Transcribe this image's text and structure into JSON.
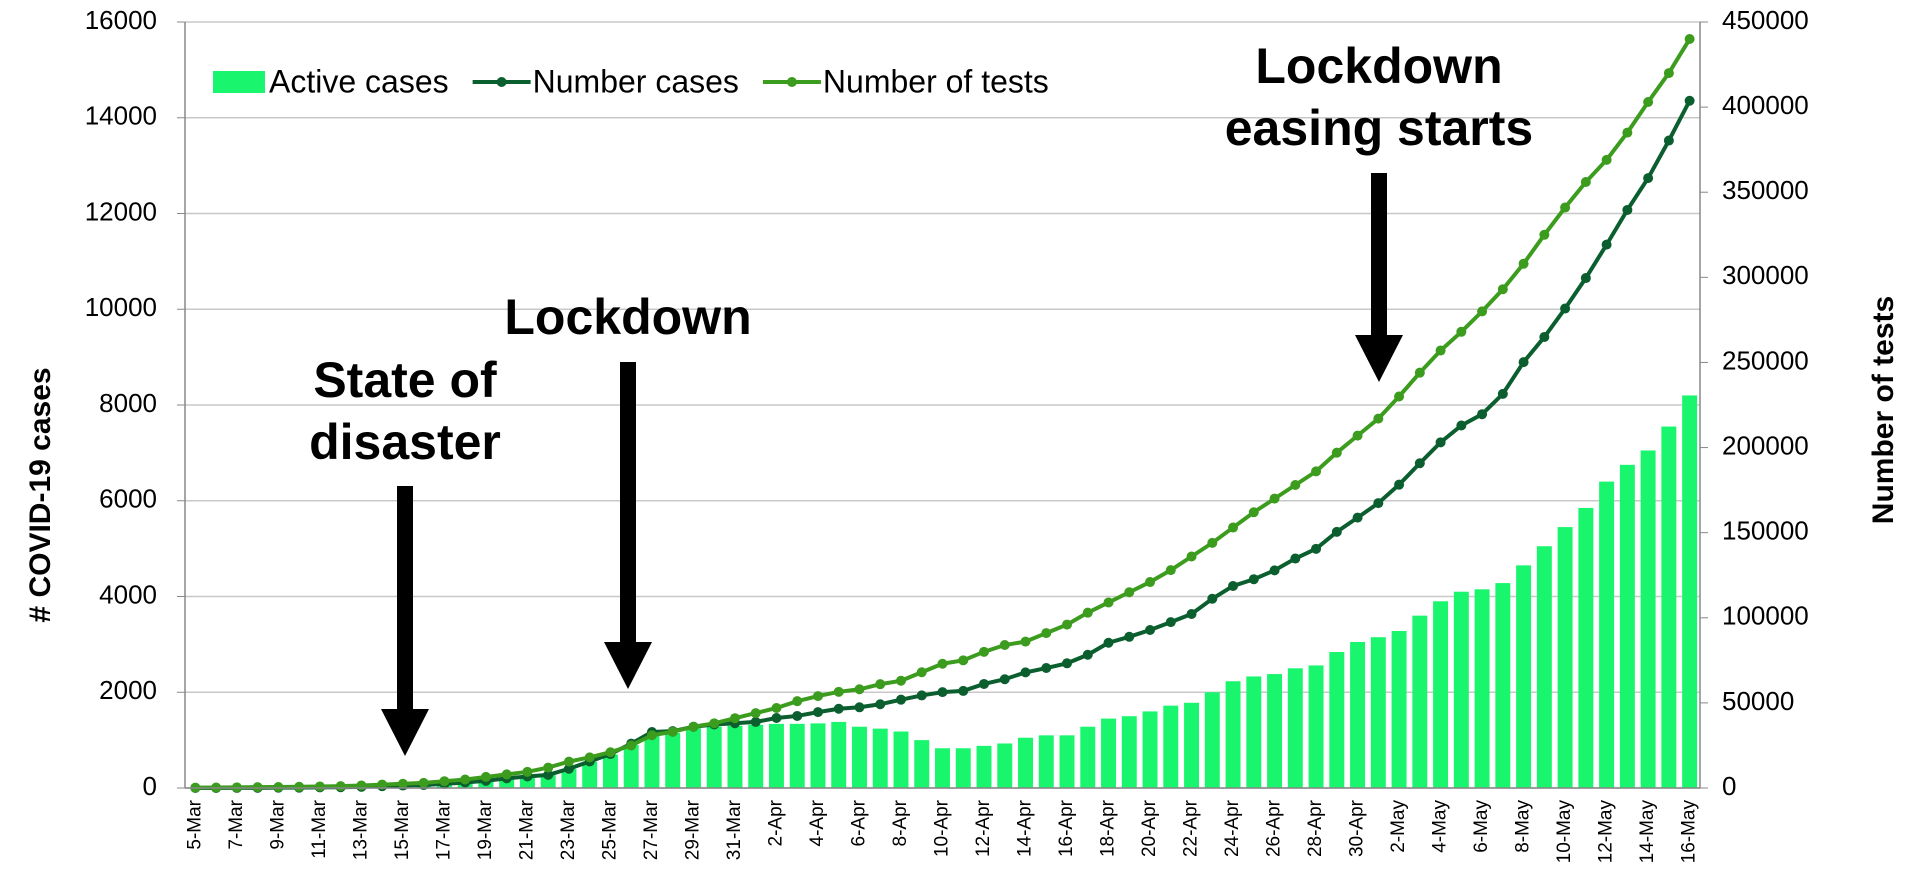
{
  "chart_data": {
    "type": "bar-line",
    "categories": [
      "5-Mar",
      null,
      "7-Mar",
      null,
      "9-Mar",
      null,
      "11-Mar",
      null,
      "13-Mar",
      null,
      "15-Mar",
      null,
      "17-Mar",
      null,
      "19-Mar",
      null,
      "21-Mar",
      null,
      "23-Mar",
      null,
      "25-Mar",
      null,
      "27-Mar",
      null,
      "29-Mar",
      null,
      "31-Mar",
      null,
      "2-Apr",
      null,
      "4-Apr",
      null,
      "6-Apr",
      null,
      "8-Apr",
      null,
      "10-Apr",
      null,
      "12-Apr",
      null,
      "14-Apr",
      null,
      "16-Apr",
      null,
      "18-Apr",
      null,
      "20-Apr",
      null,
      "22-Apr",
      null,
      "24-Apr",
      null,
      "26-Apr",
      null,
      "28-Apr",
      null,
      "30-Apr",
      null,
      "2-May",
      null,
      "4-May",
      null,
      "6-May",
      null,
      "8-May",
      null,
      "10-May",
      null,
      "12-May",
      null,
      "14-May",
      null,
      "16-May"
    ],
    "series": [
      {
        "name": "Active cases",
        "kind": "bar",
        "color": "#19f56c",
        "values": [
          1,
          1,
          2,
          3,
          7,
          7,
          13,
          16,
          24,
          38,
          51,
          62,
          85,
          116,
          150,
          200,
          240,
          270,
          400,
          550,
          700,
          900,
          1100,
          1150,
          1250,
          1280,
          1300,
          1320,
          1340,
          1340,
          1350,
          1380,
          1280,
          1240,
          1180,
          1000,
          830,
          830,
          880,
          930,
          1050,
          1100,
          1100,
          1280,
          1450,
          1500,
          1600,
          1720,
          1780,
          2000,
          2230,
          2330,
          2380,
          2500,
          2560,
          2840,
          3050,
          3150,
          3280,
          3600,
          3900,
          4100,
          4150,
          4280,
          4650,
          5050,
          5450,
          5850,
          6400,
          6750,
          7050,
          7550,
          8200
        ]
      },
      {
        "name": "Number cases",
        "kind": "line",
        "color": "#0b5e2e",
        "values": [
          1,
          1,
          2,
          3,
          7,
          7,
          13,
          16,
          24,
          38,
          51,
          62,
          85,
          116,
          150,
          202,
          240,
          274,
          402,
          554,
          709,
          927,
          1170,
          1187,
          1280,
          1326,
          1353,
          1380,
          1462,
          1505,
          1585,
          1655,
          1686,
          1749,
          1845,
          1934,
          2003,
          2028,
          2173,
          2272,
          2415,
          2506,
          2605,
          2783,
          3034,
          3158,
          3300,
          3465,
          3635,
          3953,
          4220,
          4361,
          4546,
          4793,
          4996,
          5350,
          5647,
          5951,
          6336,
          6783,
          7220,
          7572,
          7808,
          8232,
          8895,
          9420,
          10015,
          10652,
          11350,
          12074,
          12739,
          13524,
          14355
        ]
      },
      {
        "name": "Number of tests",
        "kind": "line",
        "axis": "y2",
        "color": "#3c9c1e",
        "values": [
          200,
          300,
          400,
          500,
          600,
          700,
          900,
          1100,
          1500,
          2000,
          2500,
          3000,
          4000,
          5000,
          6500,
          8000,
          9500,
          12000,
          15500,
          18000,
          21000,
          25000,
          31000,
          33000,
          36000,
          38000,
          41000,
          44000,
          47000,
          51000,
          54000,
          56500,
          58000,
          61000,
          63000,
          68000,
          73000,
          75000,
          80000,
          84000,
          86000,
          91000,
          96000,
          103000,
          109000,
          115000,
          121000,
          128000,
          136000,
          144000,
          153000,
          162000,
          170000,
          178000,
          186000,
          197000,
          207000,
          217000,
          230000,
          244000,
          257000,
          268000,
          280000,
          293000,
          308000,
          325000,
          341000,
          356000,
          369000,
          385000,
          403000,
          420000,
          440000
        ]
      }
    ],
    "ylim": [
      0,
      16000
    ],
    "yticks": [
      0,
      2000,
      4000,
      6000,
      8000,
      10000,
      12000,
      14000,
      16000
    ],
    "y2lim": [
      0,
      450000
    ],
    "y2ticks": [
      0,
      50000,
      100000,
      150000,
      200000,
      250000,
      300000,
      350000,
      400000,
      450000
    ],
    "ylabel": "# COVID-19 cases",
    "y2label": "Number of tests",
    "grid": true,
    "legend": "top-left",
    "annotations": [
      [
        "State of",
        "disaster"
      ],
      [
        "Lockdown"
      ],
      [
        "Lockdown",
        "easing starts"
      ]
    ]
  }
}
